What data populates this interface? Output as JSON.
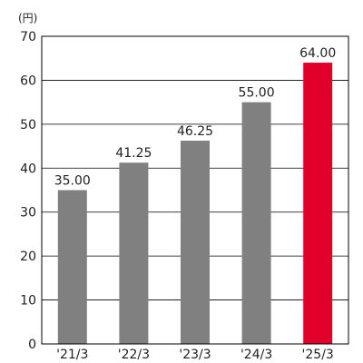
{
  "chart_data": {
    "type": "bar",
    "unit": "(円)",
    "categories": [
      "'21/3",
      "'22/3",
      "'23/3",
      "'24/3",
      "'25/3"
    ],
    "values": [
      35.0,
      41.25,
      46.25,
      55.0,
      64.0
    ],
    "data_labels": [
      "35.00",
      "41.25",
      "46.25",
      "55.00",
      "64.00"
    ],
    "ylim": [
      0,
      70
    ],
    "yticks": [
      0,
      10,
      20,
      30,
      40,
      50,
      60,
      70
    ],
    "grid": true,
    "colors": {
      "default_bar": "#808080",
      "highlight_bar": "#e0002a",
      "grid": "#000000",
      "axis": "#000000"
    },
    "highlight_index": 4
  }
}
